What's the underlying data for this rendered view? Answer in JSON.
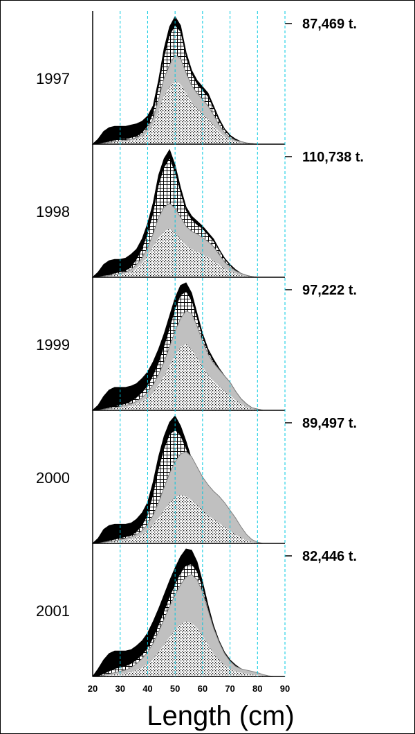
{
  "chart_data": {
    "type": "area",
    "xlabel": "Length (cm)",
    "x_ticks": [
      20,
      30,
      40,
      50,
      60,
      70,
      80,
      90
    ],
    "xlim": [
      20,
      90
    ],
    "gridlines": {
      "vertical": true,
      "color": "#00c8e0"
    },
    "layer_colors": {
      "black": "#000000",
      "crosshatch": "#ffffff",
      "gray": "#c0c0c0",
      "stipple": "#ffffff"
    },
    "x": [
      20,
      22,
      24,
      26,
      28,
      30,
      32,
      34,
      36,
      38,
      40,
      42,
      44,
      46,
      48,
      50,
      52,
      54,
      56,
      58,
      60,
      62,
      64,
      66,
      68,
      70,
      72,
      74,
      76,
      78,
      80,
      82,
      84,
      86,
      88,
      90
    ],
    "panels": [
      {
        "year": "1997",
        "total": "87,469 t.",
        "ymax": 1.0,
        "series": {
          "black": [
            0,
            0.04,
            0.1,
            0.13,
            0.14,
            0.14,
            0.14,
            0.15,
            0.16,
            0.18,
            0.22,
            0.3,
            0.5,
            0.75,
            0.92,
            1.0,
            0.93,
            0.72,
            0.58,
            0.5,
            0.45,
            0.4,
            0.3,
            0.2,
            0.12,
            0.07,
            0.04,
            0.02,
            0.01,
            0.005,
            0,
            0,
            0,
            0,
            0,
            0
          ],
          "crosshatch": [
            0,
            0,
            0.01,
            0.02,
            0.03,
            0.04,
            0.04,
            0.05,
            0.06,
            0.09,
            0.14,
            0.24,
            0.44,
            0.68,
            0.85,
            0.93,
            0.88,
            0.68,
            0.55,
            0.47,
            0.42,
            0.37,
            0.28,
            0.18,
            0.11,
            0.06,
            0.03,
            0.02,
            0.01,
            0.004,
            0,
            0,
            0,
            0,
            0,
            0
          ],
          "gray": [
            0,
            0,
            0.01,
            0.015,
            0.02,
            0.025,
            0.03,
            0.04,
            0.05,
            0.08,
            0.12,
            0.2,
            0.35,
            0.52,
            0.62,
            0.7,
            0.67,
            0.56,
            0.46,
            0.4,
            0.35,
            0.3,
            0.23,
            0.15,
            0.09,
            0.05,
            0.03,
            0.02,
            0.01,
            0.004,
            0,
            0,
            0,
            0,
            0,
            0
          ],
          "stipple": [
            0,
            0,
            0.005,
            0.01,
            0.015,
            0.02,
            0.02,
            0.03,
            0.04,
            0.06,
            0.09,
            0.15,
            0.26,
            0.38,
            0.45,
            0.5,
            0.47,
            0.4,
            0.33,
            0.28,
            0.24,
            0.2,
            0.15,
            0.1,
            0.06,
            0.035,
            0.02,
            0.01,
            0.005,
            0.002,
            0,
            0,
            0,
            0,
            0,
            0
          ]
        }
      },
      {
        "year": "1998",
        "total": "110,738 t.",
        "ymax": 1.0,
        "series": {
          "black": [
            0,
            0.04,
            0.1,
            0.13,
            0.14,
            0.14,
            0.15,
            0.18,
            0.22,
            0.3,
            0.42,
            0.58,
            0.8,
            0.93,
            1.0,
            0.88,
            0.7,
            0.55,
            0.48,
            0.44,
            0.4,
            0.35,
            0.3,
            0.22,
            0.15,
            0.1,
            0.06,
            0.03,
            0.015,
            0.005,
            0,
            0,
            0,
            0,
            0,
            0
          ],
          "crosshatch": [
            0,
            0,
            0.01,
            0.02,
            0.03,
            0.04,
            0.05,
            0.08,
            0.14,
            0.22,
            0.34,
            0.5,
            0.72,
            0.86,
            0.93,
            0.82,
            0.66,
            0.52,
            0.45,
            0.41,
            0.38,
            0.33,
            0.28,
            0.21,
            0.14,
            0.09,
            0.05,
            0.03,
            0.015,
            0.005,
            0,
            0,
            0,
            0,
            0,
            0
          ],
          "gray": [
            0,
            0,
            0.01,
            0.015,
            0.02,
            0.03,
            0.04,
            0.06,
            0.1,
            0.15,
            0.23,
            0.34,
            0.47,
            0.55,
            0.58,
            0.54,
            0.47,
            0.4,
            0.36,
            0.34,
            0.31,
            0.28,
            0.24,
            0.18,
            0.12,
            0.08,
            0.05,
            0.03,
            0.015,
            0.005,
            0,
            0,
            0,
            0,
            0,
            0
          ],
          "stipple": [
            0,
            0,
            0.005,
            0.01,
            0.015,
            0.02,
            0.03,
            0.04,
            0.07,
            0.11,
            0.17,
            0.24,
            0.31,
            0.36,
            0.38,
            0.35,
            0.3,
            0.25,
            0.22,
            0.2,
            0.18,
            0.16,
            0.13,
            0.1,
            0.07,
            0.045,
            0.03,
            0.015,
            0.008,
            0.003,
            0,
            0,
            0,
            0,
            0,
            0
          ]
        }
      },
      {
        "year": "1999",
        "total": "97,222 t.",
        "ymax": 1.0,
        "series": {
          "black": [
            0,
            0.04,
            0.11,
            0.16,
            0.18,
            0.18,
            0.18,
            0.19,
            0.21,
            0.25,
            0.3,
            0.38,
            0.48,
            0.6,
            0.74,
            0.88,
            0.98,
            1.0,
            0.92,
            0.76,
            0.6,
            0.48,
            0.4,
            0.33,
            0.27,
            0.22,
            0.15,
            0.09,
            0.05,
            0.02,
            0.01,
            0,
            0,
            0,
            0,
            0
          ],
          "crosshatch": [
            0,
            0,
            0.01,
            0.02,
            0.03,
            0.04,
            0.05,
            0.07,
            0.1,
            0.14,
            0.19,
            0.27,
            0.37,
            0.5,
            0.64,
            0.79,
            0.9,
            0.93,
            0.86,
            0.72,
            0.57,
            0.46,
            0.38,
            0.32,
            0.26,
            0.21,
            0.14,
            0.08,
            0.04,
            0.02,
            0.01,
            0,
            0,
            0,
            0,
            0
          ],
          "gray": [
            0,
            0,
            0.01,
            0.015,
            0.02,
            0.03,
            0.04,
            0.05,
            0.07,
            0.1,
            0.14,
            0.2,
            0.28,
            0.38,
            0.5,
            0.62,
            0.72,
            0.78,
            0.76,
            0.66,
            0.54,
            0.44,
            0.37,
            0.32,
            0.27,
            0.22,
            0.15,
            0.09,
            0.05,
            0.02,
            0.01,
            0,
            0,
            0,
            0,
            0
          ],
          "stipple": [
            0,
            0,
            0.005,
            0.01,
            0.015,
            0.02,
            0.025,
            0.035,
            0.05,
            0.07,
            0.1,
            0.14,
            0.2,
            0.27,
            0.35,
            0.43,
            0.5,
            0.52,
            0.48,
            0.41,
            0.34,
            0.28,
            0.23,
            0.19,
            0.15,
            0.12,
            0.08,
            0.05,
            0.025,
            0.01,
            0.005,
            0,
            0,
            0,
            0,
            0
          ]
        }
      },
      {
        "year": "2000",
        "total": "89,497 t.",
        "ymax": 1.0,
        "series": {
          "black": [
            0,
            0.04,
            0.11,
            0.14,
            0.15,
            0.15,
            0.15,
            0.16,
            0.19,
            0.24,
            0.32,
            0.48,
            0.68,
            0.84,
            0.95,
            1.0,
            0.92,
            0.8,
            0.66,
            0.54,
            0.44,
            0.35,
            0.27,
            0.19,
            0.12,
            0.07,
            0.04,
            0.02,
            0.01,
            0.005,
            0,
            0,
            0,
            0,
            0,
            0
          ],
          "crosshatch": [
            0,
            0,
            0.01,
            0.02,
            0.03,
            0.04,
            0.05,
            0.06,
            0.09,
            0.14,
            0.22,
            0.38,
            0.58,
            0.74,
            0.85,
            0.89,
            0.84,
            0.74,
            0.62,
            0.51,
            0.41,
            0.33,
            0.25,
            0.18,
            0.11,
            0.06,
            0.035,
            0.02,
            0.01,
            0.004,
            0,
            0,
            0,
            0,
            0,
            0
          ],
          "gray": [
            0,
            0,
            0.01,
            0.015,
            0.02,
            0.03,
            0.04,
            0.05,
            0.07,
            0.1,
            0.15,
            0.22,
            0.32,
            0.44,
            0.55,
            0.64,
            0.7,
            0.72,
            0.68,
            0.6,
            0.52,
            0.46,
            0.41,
            0.37,
            0.32,
            0.26,
            0.2,
            0.13,
            0.07,
            0.03,
            0.01,
            0,
            0,
            0,
            0,
            0
          ],
          "stipple": [
            0,
            0,
            0.005,
            0.01,
            0.015,
            0.02,
            0.025,
            0.035,
            0.05,
            0.07,
            0.1,
            0.15,
            0.2,
            0.26,
            0.32,
            0.36,
            0.38,
            0.37,
            0.34,
            0.3,
            0.26,
            0.22,
            0.19,
            0.16,
            0.13,
            0.1,
            0.07,
            0.045,
            0.025,
            0.01,
            0.005,
            0,
            0,
            0,
            0,
            0
          ]
        }
      },
      {
        "year": "2001",
        "total": "82,446 t.",
        "ymax": 1.0,
        "series": {
          "black": [
            0,
            0.06,
            0.13,
            0.18,
            0.2,
            0.2,
            0.2,
            0.21,
            0.24,
            0.28,
            0.34,
            0.43,
            0.53,
            0.64,
            0.75,
            0.85,
            0.94,
            1.0,
            0.99,
            0.9,
            0.74,
            0.56,
            0.4,
            0.28,
            0.19,
            0.13,
            0.09,
            0.06,
            0.04,
            0.03,
            0.02,
            0.01,
            0,
            0,
            0,
            0
          ],
          "crosshatch": [
            0,
            0,
            0.02,
            0.04,
            0.06,
            0.07,
            0.08,
            0.1,
            0.13,
            0.17,
            0.22,
            0.3,
            0.4,
            0.51,
            0.62,
            0.72,
            0.81,
            0.87,
            0.88,
            0.82,
            0.69,
            0.53,
            0.38,
            0.27,
            0.18,
            0.12,
            0.08,
            0.05,
            0.03,
            0.02,
            0.01,
            0.005,
            0,
            0,
            0,
            0
          ],
          "gray": [
            0,
            0,
            0.01,
            0.02,
            0.03,
            0.04,
            0.05,
            0.07,
            0.1,
            0.14,
            0.19,
            0.26,
            0.35,
            0.45,
            0.55,
            0.64,
            0.72,
            0.78,
            0.8,
            0.76,
            0.66,
            0.52,
            0.38,
            0.27,
            0.18,
            0.12,
            0.08,
            0.06,
            0.05,
            0.04,
            0.03,
            0.015,
            0.005,
            0,
            0,
            0
          ],
          "stipple": [
            0,
            0,
            0.005,
            0.01,
            0.015,
            0.02,
            0.025,
            0.035,
            0.05,
            0.07,
            0.1,
            0.14,
            0.19,
            0.25,
            0.31,
            0.37,
            0.41,
            0.43,
            0.42,
            0.38,
            0.32,
            0.25,
            0.18,
            0.13,
            0.09,
            0.06,
            0.04,
            0.03,
            0.02,
            0.015,
            0.01,
            0.005,
            0,
            0,
            0,
            0
          ]
        }
      }
    ]
  }
}
